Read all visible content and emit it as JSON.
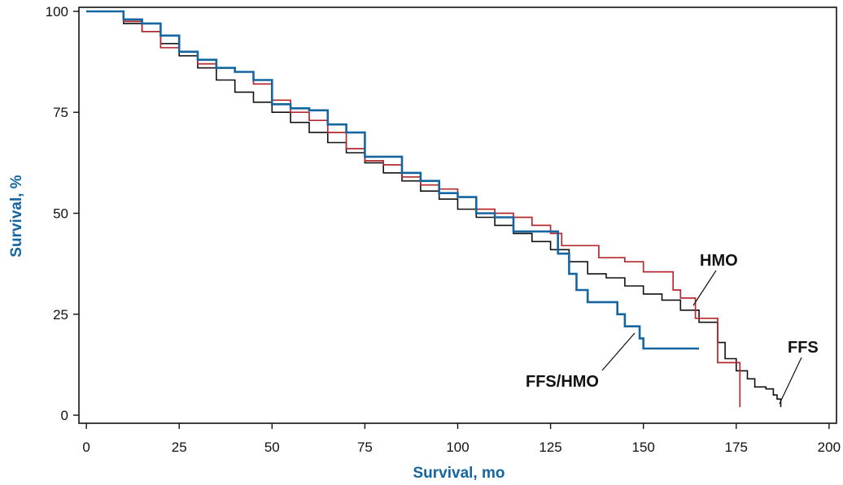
{
  "chart_data": {
    "type": "line",
    "step": true,
    "xlabel": "Survival, mo",
    "ylabel": "Survival, %",
    "xlim": [
      -2,
      202
    ],
    "ylim": [
      -2,
      101
    ],
    "xticks": [
      0,
      25,
      50,
      75,
      100,
      125,
      150,
      175,
      200
    ],
    "yticks": [
      0,
      25,
      50,
      75,
      100
    ],
    "xtick_labels": [
      "0",
      "25",
      "50",
      "75",
      "100",
      "125",
      "150",
      "175",
      "200"
    ],
    "ytick_labels": [
      "0",
      "25",
      "50",
      "75",
      "100"
    ],
    "grid": false,
    "legend": "none (direct labels)",
    "colors": {
      "ffs": "#111111",
      "hmo": "#b5282e",
      "ffs_hmo": "#1565a0",
      "axis_title": "#1565a0"
    },
    "series": [
      {
        "name": "FFS",
        "color": "#111111",
        "points": [
          [
            0,
            100
          ],
          [
            6,
            100
          ],
          [
            10,
            97
          ],
          [
            15,
            95
          ],
          [
            20,
            92
          ],
          [
            25,
            89
          ],
          [
            30,
            86
          ],
          [
            35,
            83
          ],
          [
            40,
            80
          ],
          [
            45,
            77.5
          ],
          [
            50,
            75
          ],
          [
            55,
            72.5
          ],
          [
            60,
            70
          ],
          [
            65,
            67.5
          ],
          [
            70,
            65
          ],
          [
            75,
            62.5
          ],
          [
            80,
            60
          ],
          [
            85,
            58
          ],
          [
            90,
            55.5
          ],
          [
            95,
            53.5
          ],
          [
            100,
            51
          ],
          [
            105,
            49
          ],
          [
            110,
            47
          ],
          [
            115,
            45
          ],
          [
            120,
            43
          ],
          [
            125,
            41
          ],
          [
            130,
            38
          ],
          [
            135,
            35
          ],
          [
            140,
            34
          ],
          [
            145,
            32
          ],
          [
            150,
            30
          ],
          [
            155,
            28.5
          ],
          [
            160,
            26
          ],
          [
            165,
            23
          ],
          [
            170,
            18
          ],
          [
            172,
            14
          ],
          [
            175,
            11
          ],
          [
            178,
            9
          ],
          [
            180,
            7
          ],
          [
            183,
            6.5
          ],
          [
            185,
            5
          ],
          [
            186,
            4
          ],
          [
            187,
            2
          ]
        ]
      },
      {
        "name": "HMO",
        "color": "#b5282e",
        "points": [
          [
            0,
            100
          ],
          [
            6,
            100
          ],
          [
            10,
            97.5
          ],
          [
            15,
            95
          ],
          [
            20,
            91
          ],
          [
            25,
            90
          ],
          [
            30,
            87
          ],
          [
            35,
            86
          ],
          [
            40,
            85
          ],
          [
            45,
            82
          ],
          [
            50,
            78
          ],
          [
            55,
            75
          ],
          [
            60,
            73
          ],
          [
            65,
            70
          ],
          [
            70,
            66
          ],
          [
            75,
            63
          ],
          [
            80,
            62
          ],
          [
            85,
            59
          ],
          [
            90,
            57
          ],
          [
            95,
            56
          ],
          [
            100,
            54
          ],
          [
            105,
            51
          ],
          [
            110,
            50
          ],
          [
            115,
            49
          ],
          [
            120,
            47
          ],
          [
            125,
            45
          ],
          [
            128,
            42
          ],
          [
            135,
            42
          ],
          [
            138,
            39
          ],
          [
            145,
            38
          ],
          [
            150,
            35.5
          ],
          [
            155,
            35.5
          ],
          [
            158,
            31
          ],
          [
            160,
            29
          ],
          [
            164,
            24
          ],
          [
            167,
            24
          ],
          [
            170,
            13
          ],
          [
            174,
            13
          ],
          [
            176,
            2
          ]
        ]
      },
      {
        "name": "FFS/HMO",
        "color": "#1565a0",
        "points": [
          [
            0,
            100
          ],
          [
            6,
            100
          ],
          [
            10,
            98
          ],
          [
            15,
            97
          ],
          [
            20,
            94
          ],
          [
            25,
            90
          ],
          [
            30,
            88
          ],
          [
            35,
            86
          ],
          [
            40,
            85
          ],
          [
            45,
            83
          ],
          [
            50,
            77
          ],
          [
            55,
            76
          ],
          [
            60,
            75.5
          ],
          [
            65,
            72
          ],
          [
            70,
            70
          ],
          [
            75,
            64
          ],
          [
            80,
            64
          ],
          [
            85,
            60
          ],
          [
            90,
            58
          ],
          [
            95,
            55
          ],
          [
            100,
            54
          ],
          [
            105,
            50
          ],
          [
            110,
            49
          ],
          [
            115,
            45.5
          ],
          [
            125,
            45.5
          ],
          [
            127,
            40
          ],
          [
            130,
            35
          ],
          [
            132,
            31
          ],
          [
            135,
            28
          ],
          [
            140,
            28
          ],
          [
            143,
            25
          ],
          [
            145,
            22
          ],
          [
            148,
            22
          ],
          [
            149,
            19
          ],
          [
            150,
            16.5
          ],
          [
            165,
            16.5
          ]
        ]
      }
    ],
    "annotations": [
      {
        "text": "HMO",
        "target_series": "HMO"
      },
      {
        "text": "FFS/HMO",
        "target_series": "FFS/HMO"
      },
      {
        "text": "FFS",
        "target_series": "FFS"
      }
    ]
  }
}
